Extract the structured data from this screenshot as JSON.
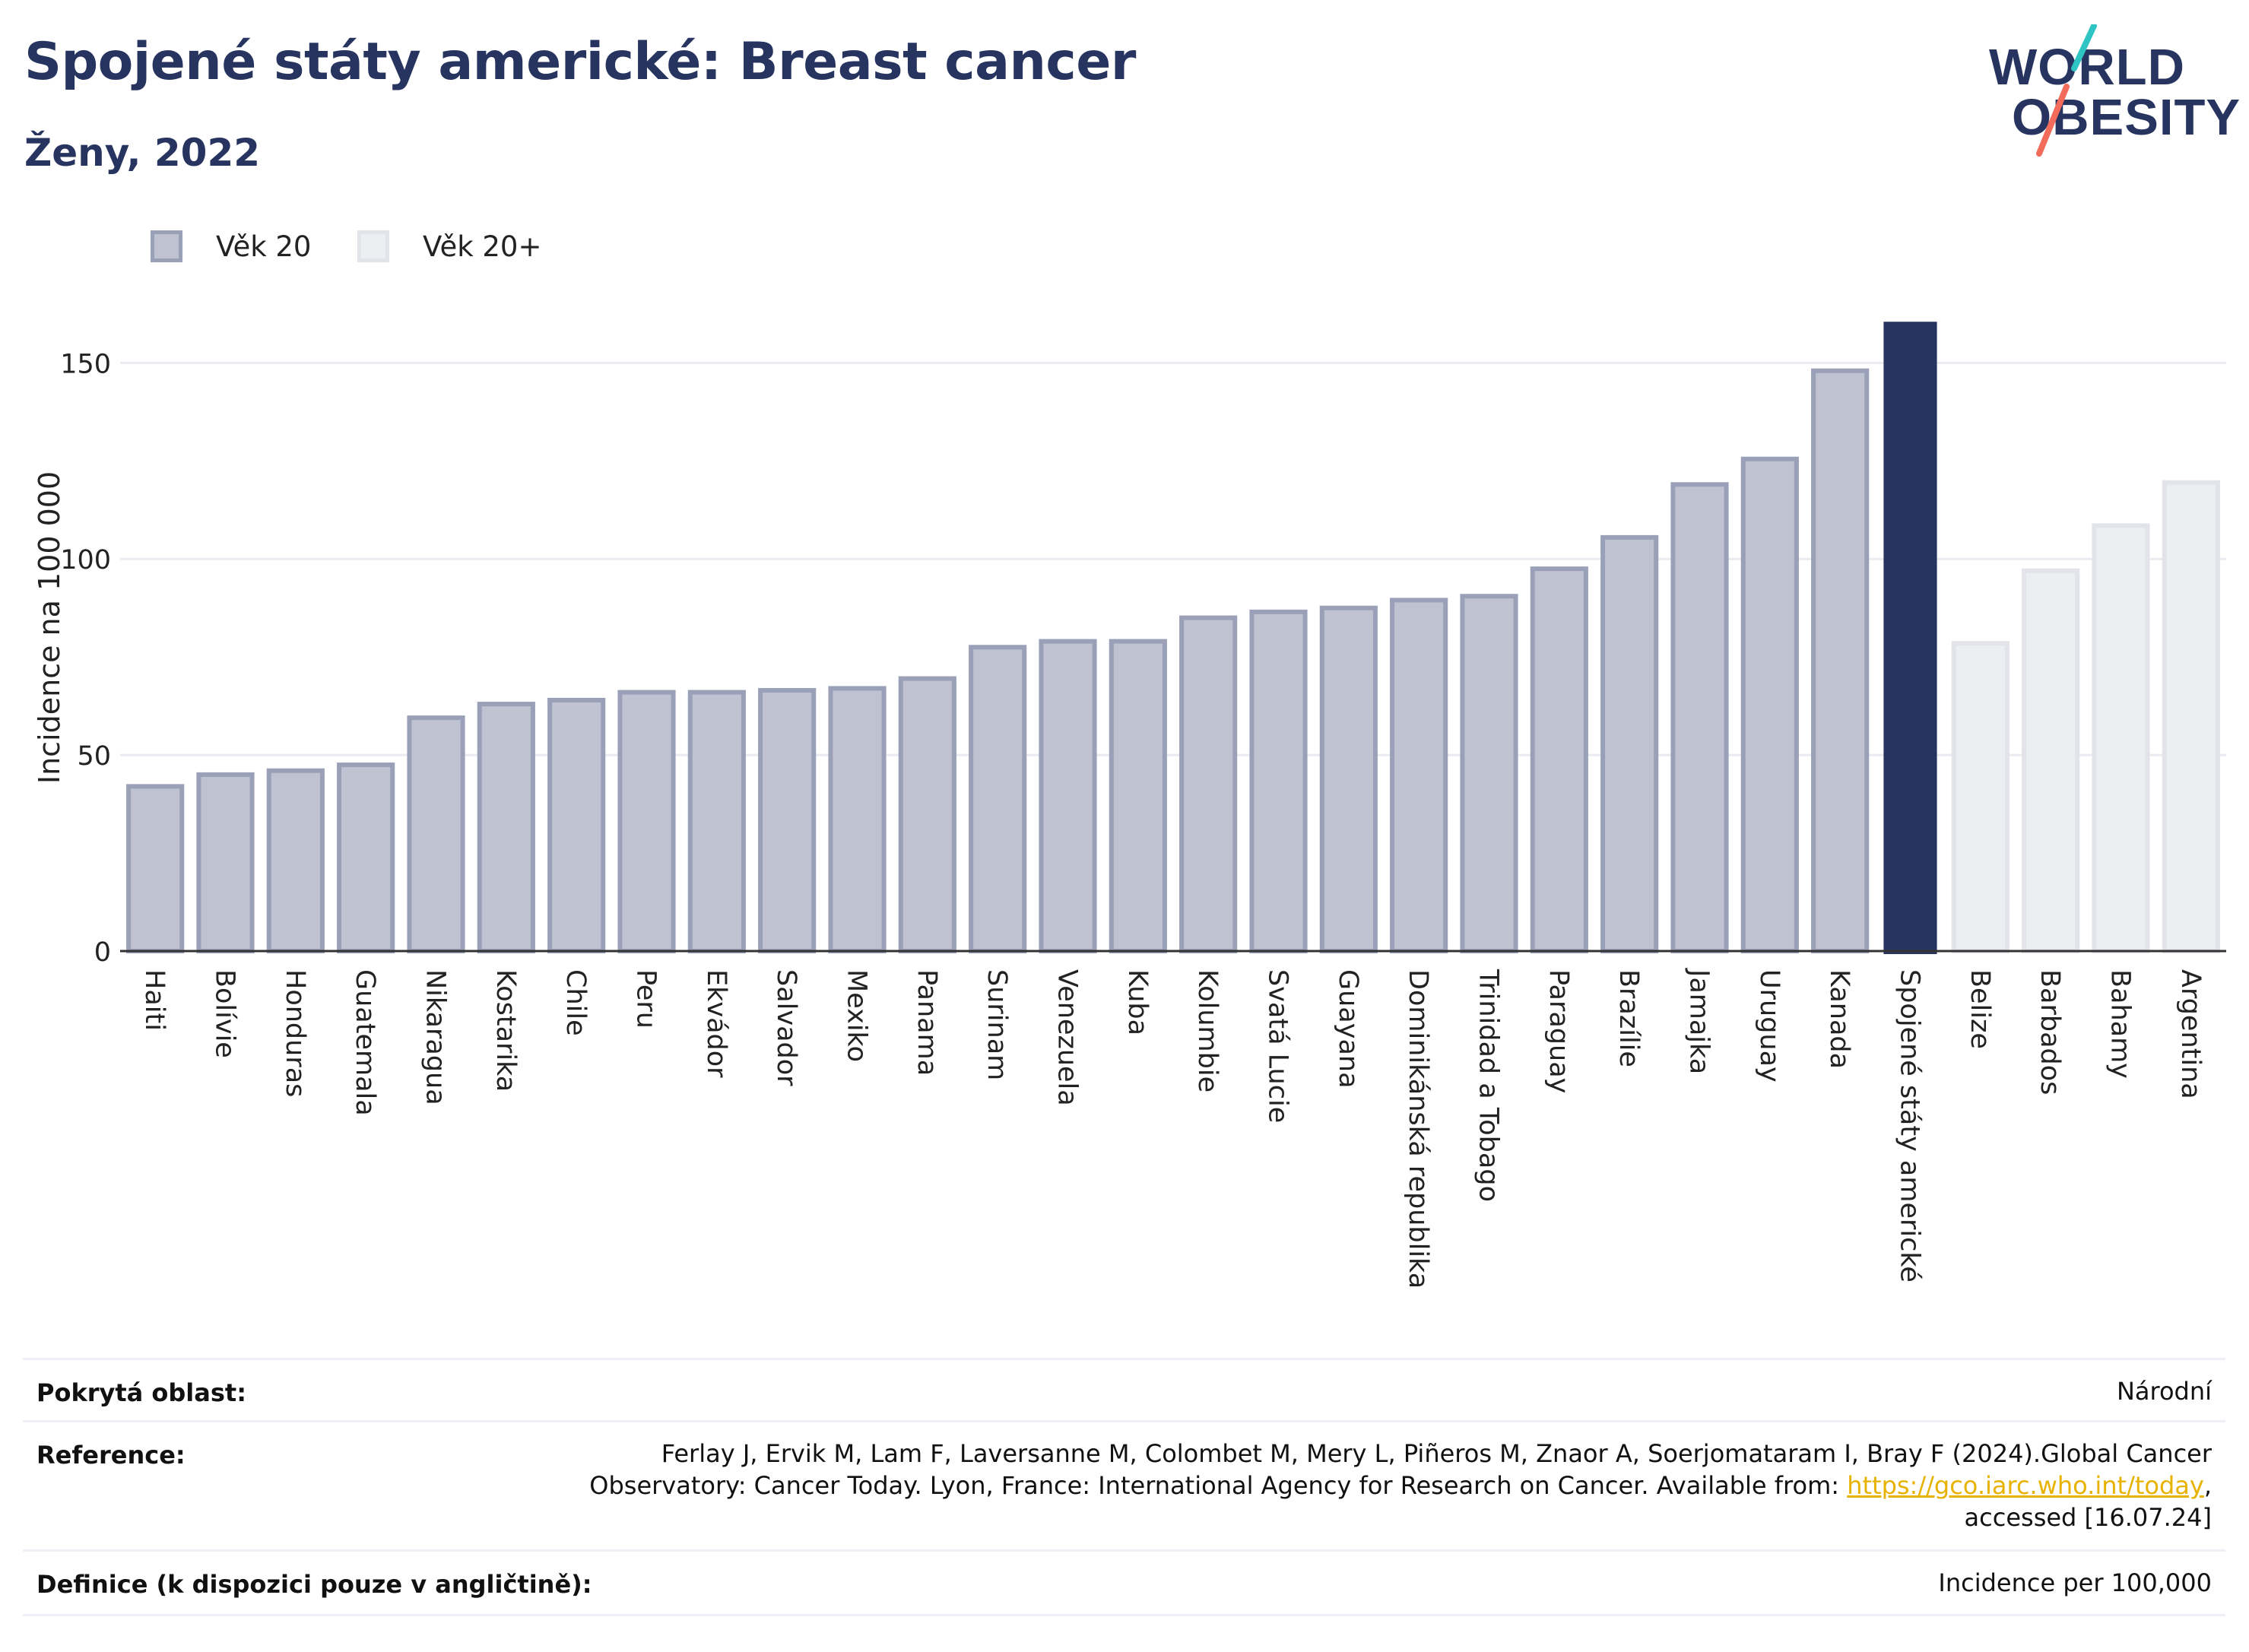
{
  "header": {
    "title": "Spojené státy americké: Breast cancer",
    "subtitle": "Ženy, 2022"
  },
  "logo": {
    "line1": "WORLD",
    "line2": "OBESITY",
    "slash_colors": [
      "#2ec4c4",
      "#f26b5b"
    ]
  },
  "legend": [
    {
      "label": "Věk 20",
      "fill": "#bfc2d0",
      "stroke": "#9aa0b8"
    },
    {
      "label": "Věk 20+",
      "fill": "#eceef2",
      "stroke": "#e2e4ea"
    }
  ],
  "chart_data": {
    "type": "bar",
    "ylabel": "Incidence na 100 000",
    "ylim": [
      0,
      165
    ],
    "yticks": [
      0,
      50,
      100,
      150
    ],
    "grid": true,
    "categories": [
      "Haiti",
      "Bolívie",
      "Honduras",
      "Guatemala",
      "Nikaragua",
      "Kostarika",
      "Chile",
      "Peru",
      "Ekvádor",
      "Salvador",
      "Mexiko",
      "Panama",
      "Surinam",
      "Venezuela",
      "Kuba",
      "Kolumbie",
      "Svatá Lucie",
      "Guayana",
      "Dominikánská republika",
      "Trinidad a Tobago",
      "Paraguay",
      "Brazílie",
      "Jamajka",
      "Uruguay",
      "Kanada",
      "Spojené státy americké",
      "Belize",
      "Barbados",
      "Bahamy",
      "Argentina"
    ],
    "values": [
      42,
      45,
      46,
      47.5,
      59.5,
      63,
      64,
      66,
      66,
      66.5,
      67,
      69.5,
      77.5,
      79,
      79,
      85,
      86.5,
      87.5,
      89.5,
      90.5,
      97.5,
      105.5,
      119,
      125.5,
      148,
      160.5,
      78.5,
      97,
      108.5,
      119.5
    ],
    "groups": [
      "Věk 20",
      "Věk 20",
      "Věk 20",
      "Věk 20",
      "Věk 20",
      "Věk 20",
      "Věk 20",
      "Věk 20",
      "Věk 20",
      "Věk 20",
      "Věk 20",
      "Věk 20",
      "Věk 20",
      "Věk 20",
      "Věk 20",
      "Věk 20",
      "Věk 20",
      "Věk 20",
      "Věk 20",
      "Věk 20",
      "Věk 20",
      "Věk 20",
      "Věk 20",
      "Věk 20",
      "Věk 20",
      "highlight",
      "Věk 20+",
      "Věk 20+",
      "Věk 20+",
      "Věk 20+"
    ],
    "highlight": "Spojené státy americké",
    "colors": {
      "age20_fill": "#bfc2d0",
      "age20_stroke": "#9aa0b8",
      "age20plus_fill": "#eceef2",
      "age20plus_stroke": "#e2e4ea",
      "highlight_fill": "#283460",
      "grid": "#e9ebf0",
      "axis": "#333333"
    }
  },
  "info": {
    "coverage_label": "Pokrytá oblast:",
    "coverage_value": "Národní",
    "reference_label": "Reference:",
    "reference_line1": "Ferlay J, Ervik M, Lam F, Laversanne M, Colombet M, Mery L, Piñeros M, Znaor A, Soerjomataram I, Bray F (2024).Global Cancer",
    "reference_line2_pre": "Observatory: Cancer Today. Lyon, France: International Agency for Research on Cancer. Available from: ",
    "reference_link": "https://gco.iarc.who.int/today",
    "reference_line2_post": ",",
    "reference_line3": "accessed [16.07.24]",
    "definition_label": "Definice (k dispozici pouze v angličtině):",
    "definition_value": "Incidence per 100,000"
  }
}
